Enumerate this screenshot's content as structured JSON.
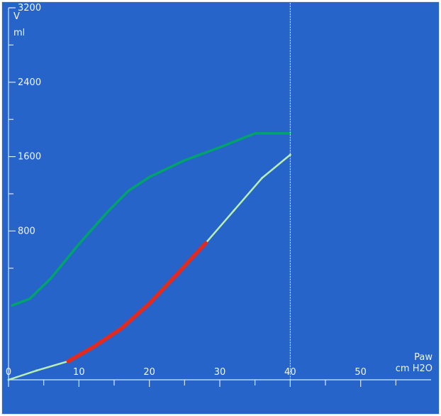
{
  "chart_data": {
    "type": "line",
    "xlabel": [
      "Paw",
      "cm H2O"
    ],
    "ylabel": [
      "V",
      "ml"
    ],
    "xlim": [
      0,
      60
    ],
    "ylim": [
      -800,
      3200
    ],
    "xticks": [
      0,
      10,
      20,
      30,
      40,
      50
    ],
    "yticks": [
      800,
      1600,
      2400,
      3200
    ],
    "x_minor_ticks": [
      5,
      15,
      25,
      35,
      45,
      55
    ],
    "y_minor_ticks": [
      400,
      1200,
      2000,
      2800,
      3600
    ],
    "grid": false,
    "series": [
      {
        "name": "",
        "color": "#00a36c",
        "x": [
          0.5,
          3,
          6,
          10,
          14,
          17,
          20,
          25,
          30,
          35,
          40
        ],
        "y": [
          -0.8,
          70,
          290,
          660,
          1000,
          1230,
          1380,
          1560,
          1700,
          1850,
          1850
        ]
      },
      {
        "name": "",
        "color": "#b7f0b2",
        "x": [
          0,
          4,
          8.5,
          12,
          16,
          20,
          24,
          28,
          32,
          36,
          40
        ],
        "y": [
          -800,
          -700,
          -600,
          -450,
          -250,
          20,
          340,
          670,
          1020,
          1370,
          1620
        ]
      },
      {
        "name": "",
        "color": "#e32a1f",
        "x": [
          8.5,
          12,
          16,
          20,
          24,
          28
        ],
        "y": [
          -600,
          -450,
          -250,
          20,
          340,
          670
        ]
      },
      {
        "name": "",
        "color": "#e7eefc",
        "x": [
          40,
          40
        ],
        "y": [
          -800,
          3500
        ]
      }
    ]
  }
}
